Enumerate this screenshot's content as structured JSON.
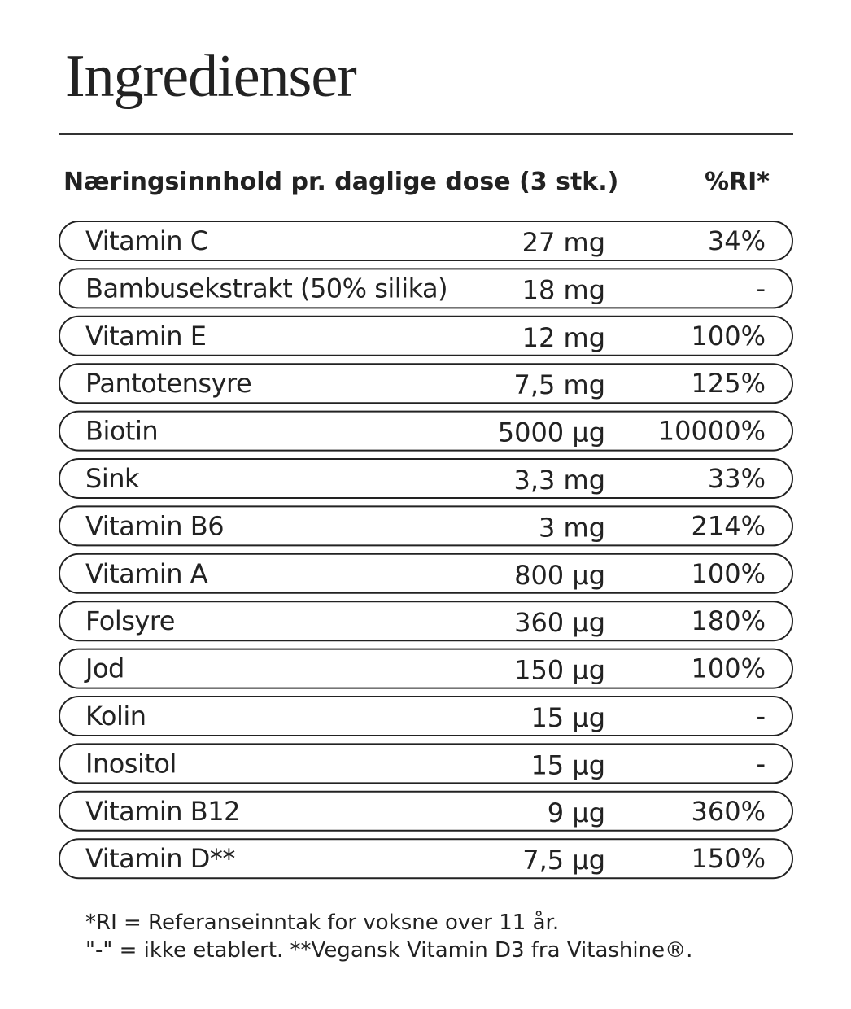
{
  "header": {
    "title": "Ingredienser"
  },
  "table": {
    "columns": [
      "Næringsinnhold pr. daglige dose (3 stk.)",
      "%RI*"
    ],
    "rows": [
      [
        "Vitamin C",
        "27 mg",
        "34%"
      ],
      [
        "Bambusekstrakt (50% silika)",
        "18 mg",
        "-"
      ],
      [
        "Vitamin E",
        "12 mg",
        "100%"
      ],
      [
        "Pantotensyre",
        "7,5 mg",
        "125%"
      ],
      [
        "Biotin",
        "5000 µg",
        "10000%"
      ],
      [
        "Sink",
        "3,3 mg",
        "33%"
      ],
      [
        "Vitamin B6",
        "3 mg",
        "214%"
      ],
      [
        "Vitamin A",
        "800 µg",
        "100%"
      ],
      [
        "Folsyre",
        "360 µg",
        "180%"
      ],
      [
        "Jod",
        "150 µg",
        "100%"
      ],
      [
        "Kolin",
        "15 µg",
        "-"
      ],
      [
        "Inositol",
        "15 µg",
        "-"
      ],
      [
        "Vitamin B12",
        "9 µg",
        "360%"
      ],
      [
        "Vitamin D**",
        "7,5 µg",
        "150%"
      ]
    ]
  },
  "footnotes": [
    "*RI = Referanseinntak for voksne over 11 år.",
    "\"-\" = ikke etablert. **Vegansk Vitamin D3 fra Vitashine®."
  ]
}
